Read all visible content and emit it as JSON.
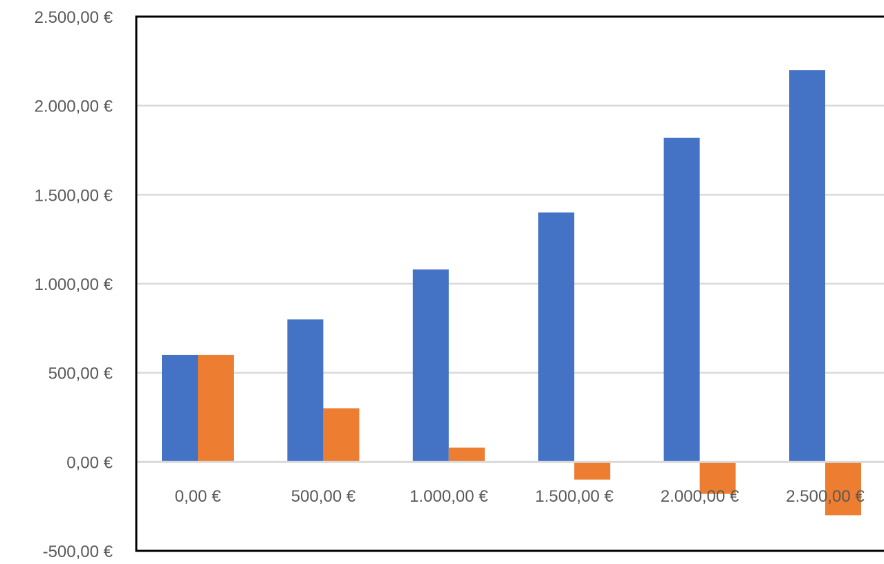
{
  "chart_data": {
    "type": "bar",
    "categories": [
      "0,00 €",
      "500,00 €",
      "1.000,00 €",
      "1.500,00 €",
      "2.000,00 €",
      "2.500,00 €"
    ],
    "series": [
      {
        "color": "#4472C4",
        "values": [
          600,
          800,
          1080,
          1400,
          1820,
          2200
        ]
      },
      {
        "color": "#ED7D31",
        "values": [
          600,
          300,
          80,
          -100,
          -180,
          -300
        ]
      }
    ],
    "ylim": [
      -500,
      2500
    ],
    "yticks": [
      -500,
      0,
      500,
      1000,
      1500,
      2000,
      2500
    ],
    "ytick_labels": [
      "-500,00 €",
      "0,00 €",
      "500,00 €",
      "1.000,00 €",
      "1.500,00 €",
      "2.000,00 €",
      "2.500,00 €"
    ],
    "grid": true,
    "legend": false,
    "colors": {
      "gridline": "#D9D9D9",
      "frame": "#000000",
      "label": "#595959"
    }
  }
}
